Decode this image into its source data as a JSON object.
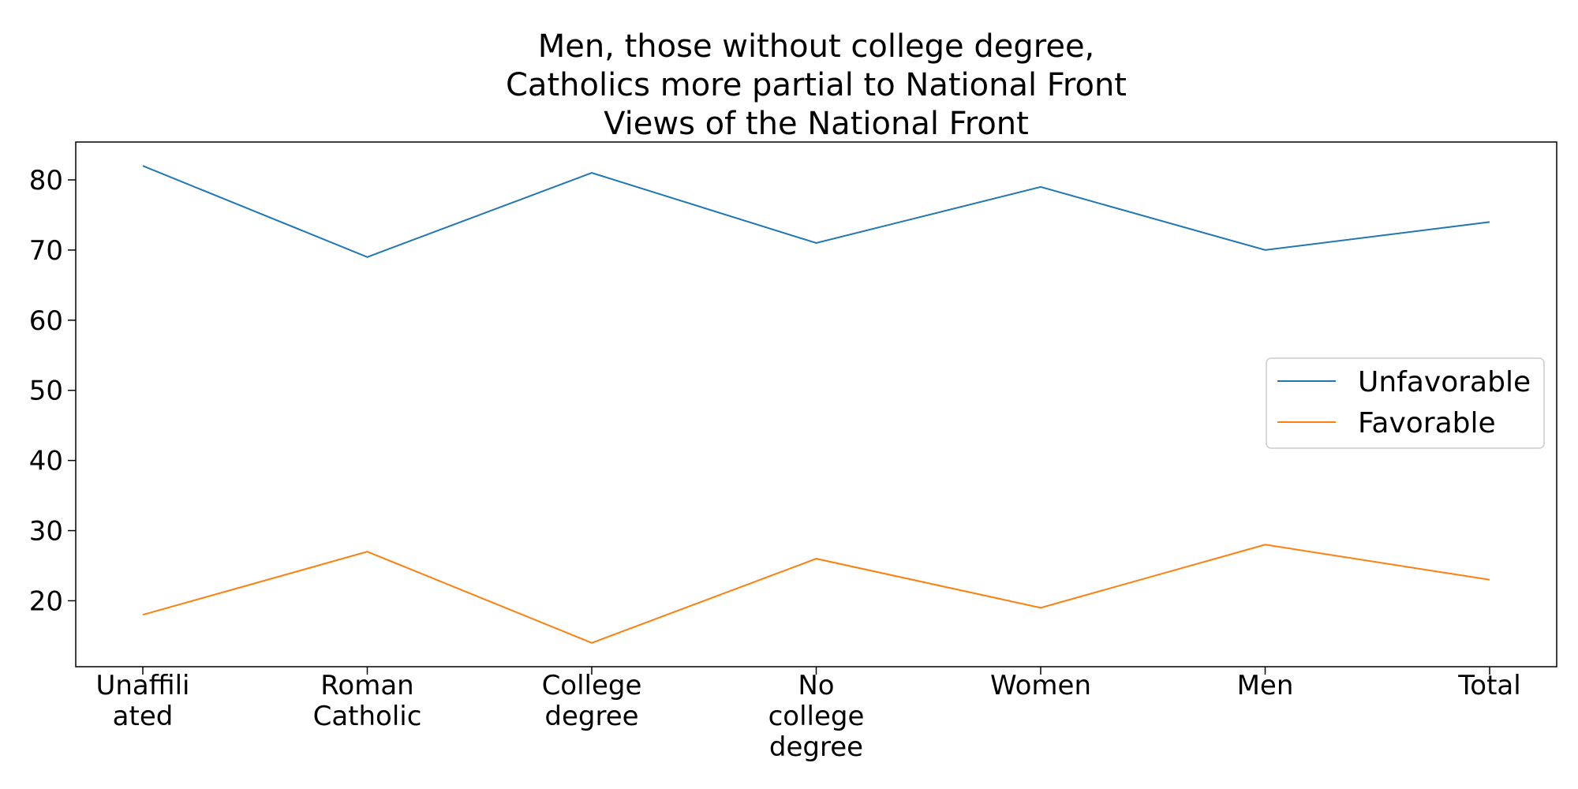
{
  "chart_data": {
    "type": "line",
    "title_lines": [
      "Men, those without college degree,",
      "Catholics more partial to National Front",
      "Views of the National Front"
    ],
    "xlabel": "",
    "ylabel": "",
    "categories": [
      [
        "Unaffili",
        "ated"
      ],
      [
        "Roman",
        "Catholic"
      ],
      [
        "College",
        "degree"
      ],
      [
        "No",
        "college",
        "degree"
      ],
      [
        "Women"
      ],
      [
        "Men"
      ],
      [
        "Total"
      ]
    ],
    "series": [
      {
        "name": "Unfavorable",
        "color": "#1f77b4",
        "values": [
          82,
          69,
          81,
          71,
          79,
          70,
          74
        ]
      },
      {
        "name": "Favorable",
        "color": "#ff7f0e",
        "values": [
          18,
          27,
          14,
          26,
          19,
          28,
          23
        ]
      }
    ],
    "ylim": [
      10.6,
      85.4
    ],
    "yticks": [
      20,
      30,
      40,
      50,
      60,
      70,
      80
    ],
    "grid": false,
    "legend_position": "center-right"
  }
}
